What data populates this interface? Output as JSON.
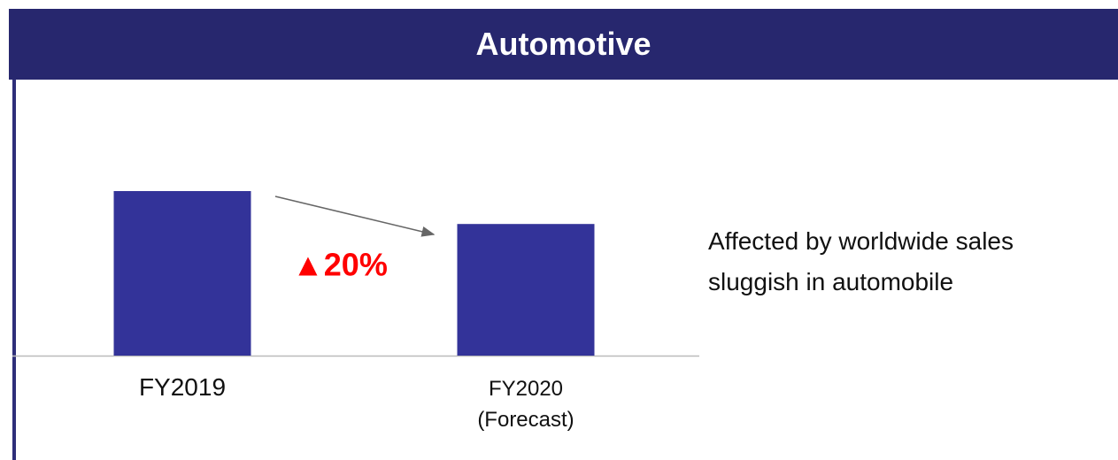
{
  "chart_data": {
    "type": "bar",
    "title": "Automotive",
    "categories": [
      "FY2019",
      "FY2020\n(Forecast)"
    ],
    "values": [
      100,
      80
    ],
    "color": "#333399",
    "annotation": "▲20%",
    "note": [
      "Affected by worldwide sales",
      "sluggish in automobile"
    ]
  }
}
